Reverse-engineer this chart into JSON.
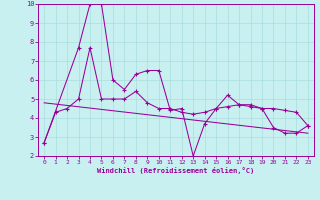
{
  "xlabel": "Windchill (Refroidissement éolien,°C)",
  "bg_color": "#c8f0f0",
  "line_color": "#990099",
  "grid_color": "#aadddd",
  "xlim": [
    -0.5,
    23.5
  ],
  "ylim": [
    2,
    10
  ],
  "yticks": [
    2,
    3,
    4,
    5,
    6,
    7,
    8,
    9,
    10
  ],
  "xticks": [
    0,
    1,
    2,
    3,
    4,
    5,
    6,
    7,
    8,
    9,
    10,
    11,
    12,
    13,
    14,
    15,
    16,
    17,
    18,
    19,
    20,
    21,
    22,
    23
  ],
  "series1_x": [
    0,
    1,
    2,
    3,
    4,
    5,
    6,
    7,
    8,
    9,
    10,
    11,
    12,
    13,
    14,
    15,
    16,
    17,
    18,
    19,
    20,
    21,
    22,
    23
  ],
  "series1_y": [
    2.7,
    4.3,
    4.5,
    5.0,
    7.7,
    5.0,
    5.0,
    5.0,
    5.4,
    4.8,
    4.5,
    4.5,
    4.3,
    4.2,
    4.3,
    4.5,
    4.6,
    4.7,
    4.6,
    4.5,
    4.5,
    4.4,
    4.3,
    3.6
  ],
  "series2_x": [
    0,
    3,
    4,
    5,
    6,
    7,
    8,
    9,
    10,
    11,
    12,
    13,
    14,
    15,
    16,
    17,
    18,
    19,
    20,
    21,
    22,
    23
  ],
  "series2_y": [
    2.7,
    7.7,
    10.0,
    10.0,
    6.0,
    5.5,
    6.3,
    6.5,
    6.5,
    4.4,
    4.5,
    2.0,
    3.7,
    4.5,
    5.2,
    4.7,
    4.7,
    4.5,
    3.5,
    3.2,
    3.2,
    3.6
  ],
  "series3_x": [
    0,
    23
  ],
  "series3_y": [
    4.8,
    3.2
  ]
}
